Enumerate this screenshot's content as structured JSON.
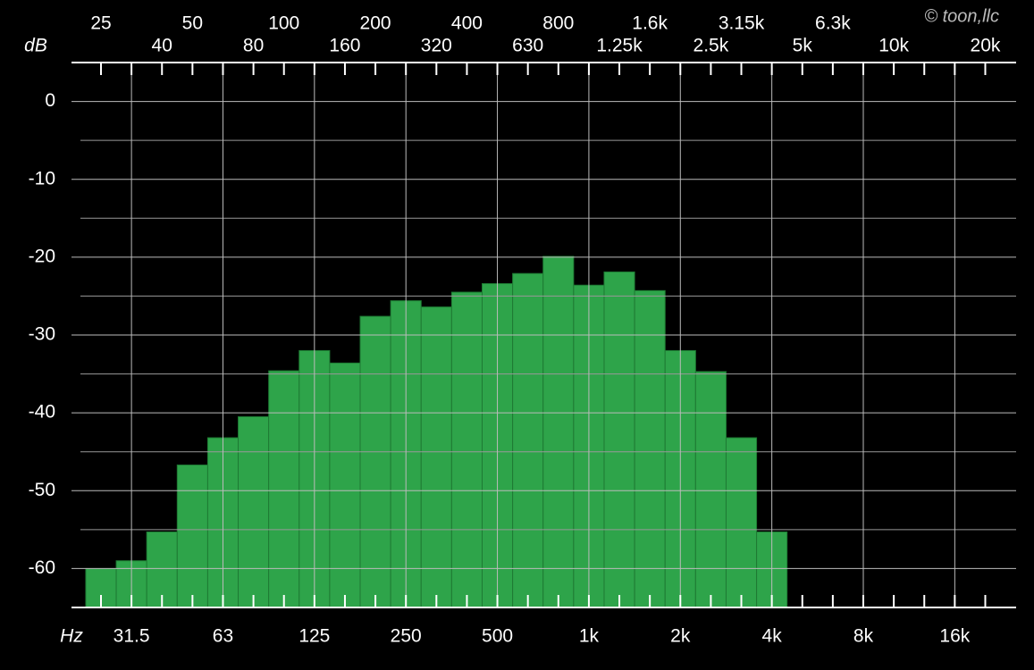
{
  "chart_data": {
    "type": "bar",
    "y_label": "dB",
    "x_label": "Hz",
    "watermark": "© toon,llc",
    "categories": [
      "25",
      "31.5",
      "40",
      "50",
      "63",
      "80",
      "100",
      "125",
      "160",
      "200",
      "250",
      "320",
      "400",
      "500",
      "630",
      "800",
      "1k",
      "1.25k",
      "1.6k",
      "2k",
      "2.5k",
      "3.15k",
      "4k",
      "5k",
      "6.3k",
      "8k",
      "10k",
      null,
      "16k",
      "20k"
    ],
    "values": [
      -60,
      -59,
      -55.3,
      -46.7,
      -43.2,
      -40.5,
      -34.6,
      -32,
      -33.6,
      -27.6,
      -25.6,
      -26.4,
      -24.5,
      -23.4,
      -22.1,
      -19.9,
      -23.6,
      -21.9,
      -24.3,
      -32,
      -34.7,
      -43.2,
      -55.3,
      null,
      null,
      null,
      null,
      null,
      null,
      null
    ],
    "color": "#2ea44a",
    "ylim": [
      -65,
      5
    ],
    "yticks": [
      0,
      -10,
      -20,
      -30,
      -40,
      -50,
      -60
    ],
    "y_minor_ticks": [
      -5,
      -15,
      -25,
      -35,
      -45,
      -55
    ],
    "grid": true
  }
}
